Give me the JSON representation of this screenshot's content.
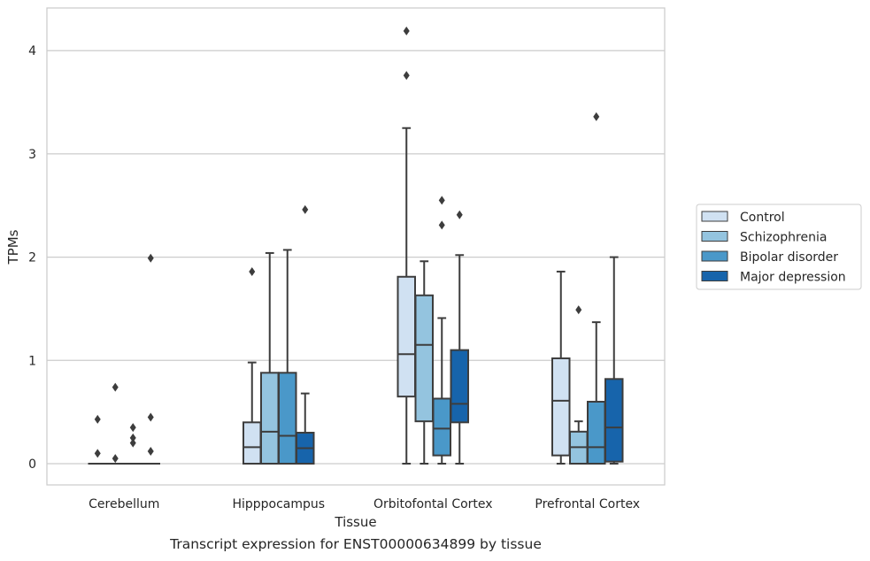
{
  "caption": "Transcript expression for ENST00000634899 by tissue",
  "chart_data": {
    "type": "box",
    "xlabel": "Tissue",
    "ylabel": "TPMs",
    "ylim": [
      -0.2,
      4.4
    ],
    "yticks": [
      0,
      1,
      2,
      3,
      4
    ],
    "grid": "horizontal",
    "legend_position": "right",
    "categories": [
      "Cerebellum",
      "Hipppocampus",
      "Orbitofontal Cortex",
      "Prefrontal Cortex"
    ],
    "series": [
      {
        "name": "Control",
        "color": "#d0e1f2",
        "boxes": [
          {
            "whislo": 0,
            "q1": 0,
            "med": 0,
            "q3": 0,
            "whishi": 0,
            "fliers": [
              0.43,
              0.1
            ]
          },
          {
            "whislo": 0,
            "q1": 0,
            "med": 0.16,
            "q3": 0.4,
            "whishi": 0.98,
            "fliers": [
              1.86
            ]
          },
          {
            "whislo": 0,
            "q1": 0.65,
            "med": 1.06,
            "q3": 1.81,
            "whishi": 3.25,
            "fliers": [
              4.19,
              3.76
            ]
          },
          {
            "whislo": 0,
            "q1": 0.08,
            "med": 0.61,
            "q3": 1.02,
            "whishi": 1.86,
            "fliers": []
          }
        ]
      },
      {
        "name": "Schizophrenia",
        "color": "#94c4df",
        "boxes": [
          {
            "whislo": 0,
            "q1": 0,
            "med": 0,
            "q3": 0,
            "whishi": 0,
            "fliers": [
              0.74,
              0.05
            ]
          },
          {
            "whislo": 0,
            "q1": 0,
            "med": 0.31,
            "q3": 0.88,
            "whishi": 2.04,
            "fliers": []
          },
          {
            "whislo": 0,
            "q1": 0.41,
            "med": 1.15,
            "q3": 1.63,
            "whishi": 1.96,
            "fliers": []
          },
          {
            "whislo": 0,
            "q1": 0,
            "med": 0.16,
            "q3": 0.31,
            "whishi": 0.41,
            "fliers": [
              1.49
            ]
          }
        ]
      },
      {
        "name": "Bipolar disorder",
        "color": "#4a98c9",
        "boxes": [
          {
            "whislo": 0,
            "q1": 0,
            "med": 0,
            "q3": 0,
            "whishi": 0,
            "fliers": [
              0.35,
              0.25,
              0.2
            ]
          },
          {
            "whislo": 0,
            "q1": 0,
            "med": 0.27,
            "q3": 0.88,
            "whishi": 2.07,
            "fliers": []
          },
          {
            "whislo": 0,
            "q1": 0.08,
            "med": 0.34,
            "q3": 0.63,
            "whishi": 1.41,
            "fliers": [
              2.55,
              2.31
            ]
          },
          {
            "whislo": 0,
            "q1": 0,
            "med": 0.16,
            "q3": 0.6,
            "whishi": 1.37,
            "fliers": [
              3.36
            ]
          }
        ]
      },
      {
        "name": "Major depression",
        "color": "#1764ab",
        "boxes": [
          {
            "whislo": 0,
            "q1": 0,
            "med": 0,
            "q3": 0,
            "whishi": 0,
            "fliers": [
              1.99,
              0.45,
              0.12
            ]
          },
          {
            "whislo": 0,
            "q1": 0,
            "med": 0.15,
            "q3": 0.3,
            "whishi": 0.68,
            "fliers": [
              2.46
            ]
          },
          {
            "whislo": 0,
            "q1": 0.4,
            "med": 0.58,
            "q3": 1.1,
            "whishi": 2.02,
            "fliers": [
              2.41
            ]
          },
          {
            "whislo": 0,
            "q1": 0.02,
            "med": 0.35,
            "q3": 0.82,
            "whishi": 2.0,
            "fliers": []
          }
        ]
      }
    ]
  }
}
